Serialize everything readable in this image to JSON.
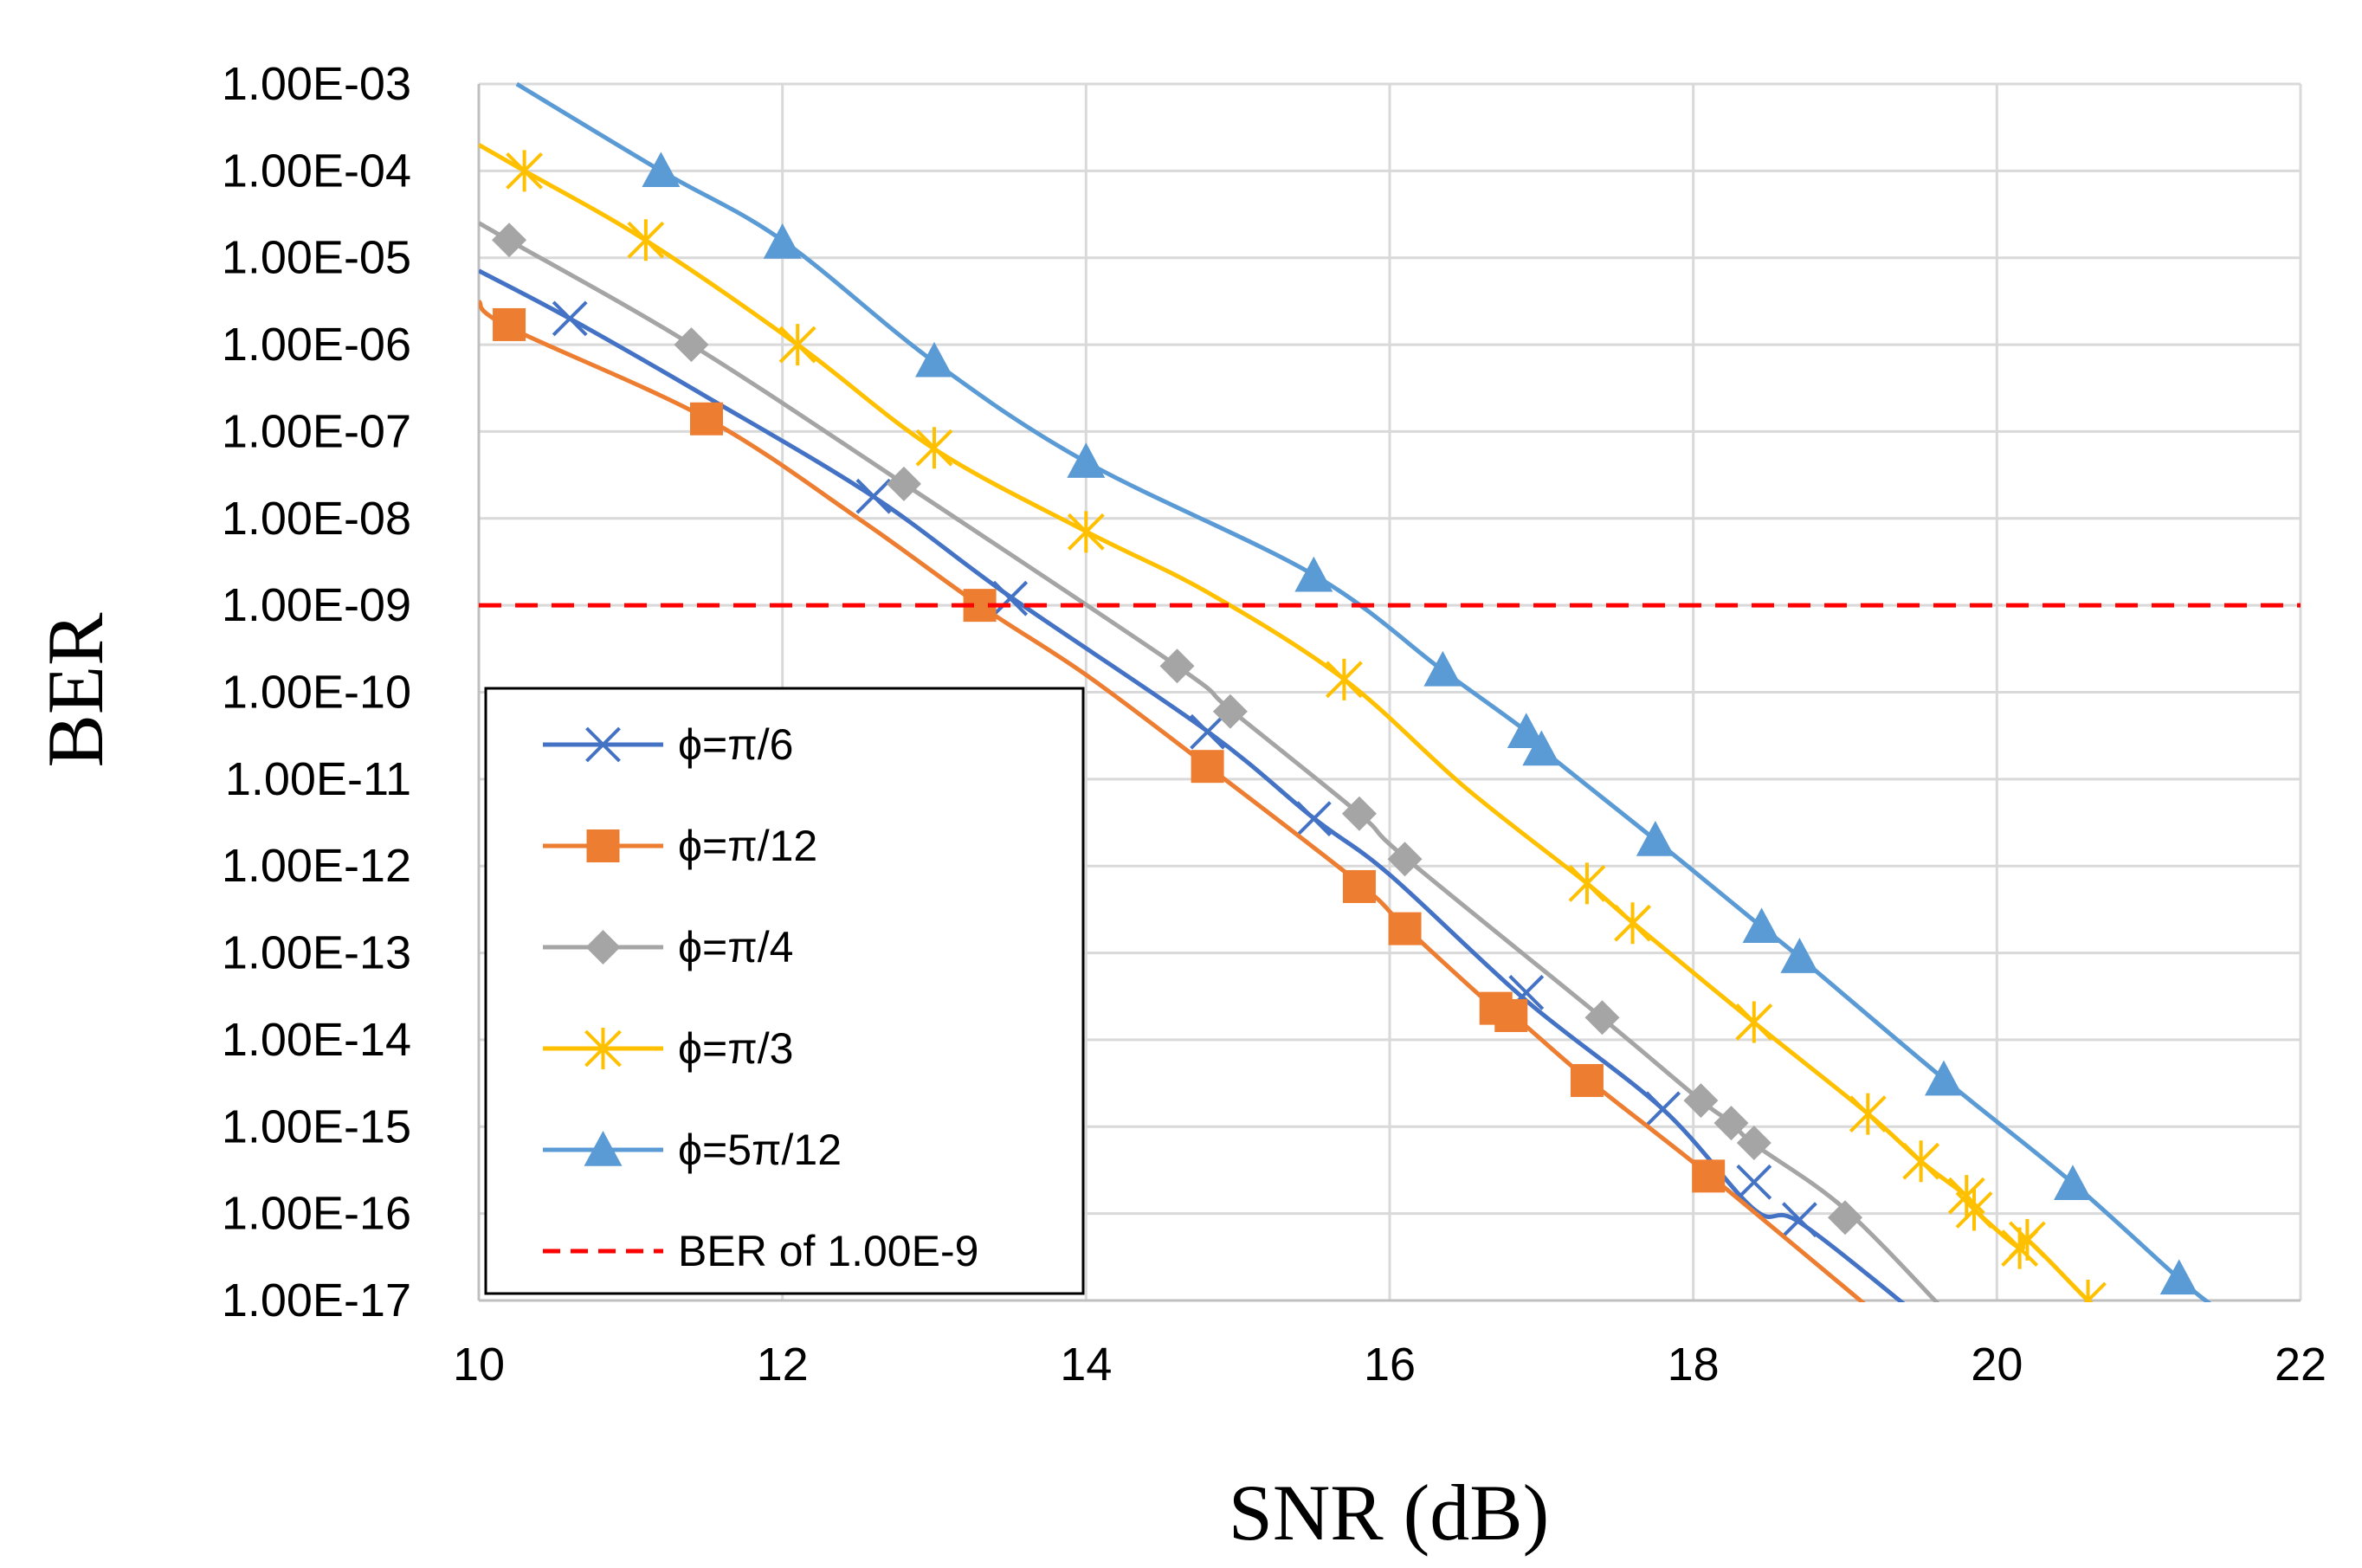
{
  "chart_data": {
    "type": "line",
    "title": "",
    "xlabel": "SNR (dB)",
    "ylabel": "BER",
    "y_scale": "log",
    "xlim": [
      10,
      22
    ],
    "ylim_exponent": [
      -17,
      -3
    ],
    "grid": true,
    "legend_position": "bottom-left",
    "x_ticks": [
      "10",
      "12",
      "14",
      "16",
      "18",
      "20",
      "22"
    ],
    "y_ticks": [
      "1.00E-03",
      "1.00E-04",
      "1.00E-05",
      "1.00E-06",
      "1.00E-07",
      "1.00E-08",
      "1.00E-09",
      "1.00E-10",
      "1.00E-11",
      "1.00E-12",
      "1.00E-13",
      "1.00E-14",
      "1.00E-15",
      "1.00E-16",
      "1.00E-17"
    ],
    "series": [
      {
        "name": "ϕ=π/6",
        "color": "#4472C4",
        "marker": "x",
        "line_log10": [
          [
            10.0,
            -5.15
          ],
          [
            10.6,
            -5.7
          ],
          [
            11.5,
            -6.6
          ],
          [
            12.6,
            -7.75
          ],
          [
            13.5,
            -8.9
          ],
          [
            14.8,
            -10.45
          ],
          [
            15.5,
            -11.45
          ],
          [
            16.0,
            -12.1
          ],
          [
            16.9,
            -13.55
          ],
          [
            17.8,
            -14.8
          ],
          [
            18.4,
            -15.95
          ],
          [
            18.7,
            -16.1
          ],
          [
            19.5,
            -17.2
          ]
        ],
        "points": [
          [
            10.6,
            2e-06
          ],
          [
            12.6,
            1.8e-08
          ],
          [
            13.5,
            1.2e-09
          ],
          [
            14.8,
            3.5e-11
          ],
          [
            15.5,
            3.5e-12
          ],
          [
            16.9,
            3.5e-14
          ],
          [
            17.8,
            1.6e-15
          ],
          [
            18.4,
            2.3e-16
          ],
          [
            18.7,
            8.5e-17
          ]
        ]
      },
      {
        "name": "ϕ=π/12",
        "color": "#ED7D31",
        "marker": "square",
        "line_log10": [
          [
            10.0,
            -5.5
          ],
          [
            10.2,
            -5.8
          ],
          [
            11.5,
            -6.85
          ],
          [
            12.5,
            -8.0
          ],
          [
            13.3,
            -9.0
          ],
          [
            14.0,
            -9.8
          ],
          [
            14.8,
            -10.85
          ],
          [
            15.8,
            -12.2
          ],
          [
            16.1,
            -12.7
          ],
          [
            16.7,
            -13.65
          ],
          [
            16.8,
            -13.7
          ],
          [
            17.3,
            -14.45
          ],
          [
            18.1,
            -15.55
          ],
          [
            19.1,
            -17.0
          ],
          [
            19.3,
            -17.3
          ]
        ],
        "points": [
          [
            10.2,
            1.7e-06
          ],
          [
            11.5,
            1.4e-07
          ],
          [
            13.3,
            1e-09
          ],
          [
            14.8,
            1.4e-11
          ],
          [
            15.8,
            5.8e-13
          ],
          [
            16.1,
            1.9e-13
          ],
          [
            16.7,
            2.3e-14
          ],
          [
            16.8,
            1.9e-14
          ],
          [
            17.3,
            3.4e-15
          ],
          [
            18.1,
            2.7e-16
          ]
        ]
      },
      {
        "name": "ϕ=π/4",
        "color": "#A5A5A5",
        "marker": "diamond",
        "line_log10": [
          [
            10.0,
            -4.6
          ],
          [
            10.2,
            -4.8
          ],
          [
            11.4,
            -6.0
          ],
          [
            12.8,
            -7.6
          ],
          [
            14.6,
            -9.7
          ],
          [
            14.95,
            -10.2
          ],
          [
            15.8,
            -11.4
          ],
          [
            16.1,
            -11.9
          ],
          [
            17.4,
            -13.75
          ],
          [
            18.05,
            -14.7
          ],
          [
            18.25,
            -14.95
          ],
          [
            18.4,
            -15.2
          ],
          [
            19.0,
            -15.95
          ],
          [
            19.7,
            -17.2
          ]
        ],
        "points": [
          [
            10.2,
            1.6e-05
          ],
          [
            11.4,
            1e-06
          ],
          [
            12.8,
            2.5e-08
          ],
          [
            14.6,
            2e-10
          ],
          [
            14.95,
            6e-11
          ],
          [
            15.8,
            4e-12
          ],
          [
            16.1,
            1.2e-12
          ],
          [
            17.4,
            1.8e-14
          ],
          [
            18.05,
            2e-15
          ],
          [
            18.25,
            1.1e-15
          ],
          [
            18.4,
            6.5e-16
          ],
          [
            19.0,
            9e-17
          ]
        ]
      },
      {
        "name": "ϕ=π/3",
        "color": "#FFC000",
        "marker": "asterisk",
        "line_log10": [
          [
            10.0,
            -3.7
          ],
          [
            10.3,
            -4.0
          ],
          [
            11.1,
            -4.8
          ],
          [
            12.1,
            -6.0
          ],
          [
            13.0,
            -7.2
          ],
          [
            14.0,
            -8.15
          ],
          [
            14.8,
            -8.85
          ],
          [
            15.7,
            -9.85
          ],
          [
            16.5,
            -11.1
          ],
          [
            17.3,
            -12.2
          ],
          [
            17.6,
            -12.65
          ],
          [
            18.4,
            -13.8
          ],
          [
            19.15,
            -14.85
          ],
          [
            19.5,
            -15.4
          ],
          [
            19.8,
            -15.8
          ],
          [
            19.85,
            -15.95
          ],
          [
            20.15,
            -16.4
          ],
          [
            20.2,
            -16.3
          ],
          [
            20.6,
            -17.0
          ],
          [
            20.75,
            -17.2
          ]
        ],
        "points": [
          [
            10.3,
            0.0001
          ],
          [
            11.1,
            1.6e-05
          ],
          [
            12.1,
            1e-06
          ],
          [
            13.0,
            6.5e-08
          ],
          [
            14.0,
            7e-09
          ],
          [
            15.7,
            1.4e-10
          ],
          [
            17.3,
            6.3e-13
          ],
          [
            17.6,
            2.2e-13
          ],
          [
            18.4,
            1.6e-14
          ],
          [
            19.15,
            1.4e-15
          ],
          [
            19.5,
            4e-16
          ],
          [
            19.8,
            1.6e-16
          ],
          [
            19.85,
            1.1e-16
          ],
          [
            20.15,
            4e-17
          ],
          [
            20.2,
            5e-17
          ],
          [
            20.6,
            1e-17
          ]
        ]
      },
      {
        "name": "ϕ=5π/12",
        "color": "#5B9BD5",
        "marker": "triangle",
        "line_log10": [
          [
            10.25,
            -3.0
          ],
          [
            11.2,
            -4.0
          ],
          [
            12.0,
            -4.8
          ],
          [
            13.0,
            -6.2
          ],
          [
            14.0,
            -7.35
          ],
          [
            15.5,
            -8.65
          ],
          [
            16.35,
            -9.75
          ],
          [
            16.9,
            -10.45
          ],
          [
            17.0,
            -10.65
          ],
          [
            17.75,
            -11.7
          ],
          [
            18.45,
            -12.7
          ],
          [
            18.7,
            -13.05
          ],
          [
            19.65,
            -14.45
          ],
          [
            20.5,
            -15.65
          ],
          [
            21.2,
            -16.75
          ],
          [
            21.45,
            -17.1
          ]
        ],
        "points": [
          [
            11.2,
            0.0001
          ],
          [
            12.0,
            1.5e-05
          ],
          [
            13.0,
            6.5e-07
          ],
          [
            14.0,
            4.5e-08
          ],
          [
            15.5,
            2.2e-09
          ],
          [
            16.35,
            1.8e-10
          ],
          [
            16.9,
            3.5e-11
          ],
          [
            17.0,
            2.2e-11
          ],
          [
            17.75,
            2e-12
          ],
          [
            18.45,
            2e-13
          ],
          [
            18.7,
            9e-14
          ],
          [
            19.65,
            3.5e-15
          ],
          [
            20.5,
            2.2e-16
          ],
          [
            21.2,
            1.8e-17
          ]
        ]
      },
      {
        "name": "BER of 1.00E-9",
        "color": "#FF0000",
        "marker": "none",
        "dashed": true,
        "line_log10": [
          [
            10.0,
            -9.0
          ],
          [
            22.0,
            -9.0
          ]
        ],
        "points": []
      }
    ]
  }
}
